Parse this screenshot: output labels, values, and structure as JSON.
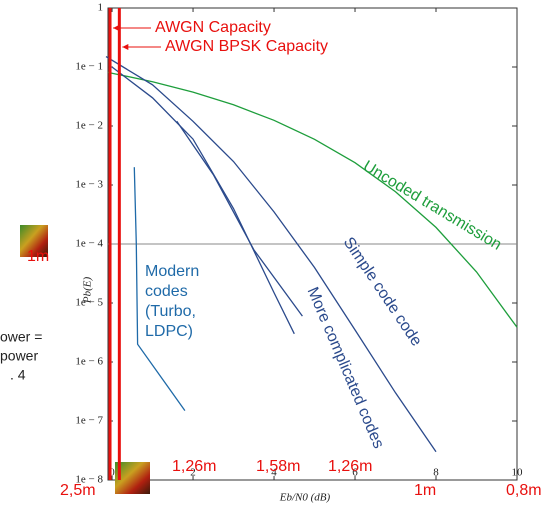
{
  "chart_data": {
    "type": "line",
    "log_y": true,
    "y_label": "Pb(E)",
    "x_label": "Eb/N0 (dB)",
    "xlim": [
      -0.1,
      10
    ],
    "ylim": [
      1e-08,
      1
    ],
    "xticks": [
      0,
      2,
      4,
      6,
      8,
      10
    ],
    "yticks": [
      1,
      {
        "value": 0.1,
        "label": "1e − 1"
      },
      {
        "value": 0.01,
        "label": "1e − 2"
      },
      {
        "value": 0.001,
        "label": "1e − 3"
      },
      {
        "value": 0.0001,
        "label": "1e − 4"
      },
      {
        "value": 1e-05,
        "label": "1e − 5"
      },
      {
        "value": 1e-06,
        "label": "1e − 6"
      },
      {
        "value": 1e-07,
        "label": "1e − 7"
      },
      {
        "value": 1e-08,
        "label": "1e − 8"
      }
    ],
    "reference_line": 0.0001,
    "capacity_lines": [
      {
        "name": "AWGN Capacity",
        "x": -0.05,
        "color": "#e8100e"
      },
      {
        "name": "AWGN BPSK Capacity",
        "x": 0.18,
        "color": "#e8100e"
      }
    ],
    "series": [
      {
        "name": "Uncoded transmission",
        "color": "#1e9e3c",
        "x": [
          -0.1,
          0,
          1,
          2,
          3,
          4,
          5,
          6,
          7,
          8,
          9,
          10
        ],
        "values": [
          0.081,
          0.0786,
          0.0563,
          0.0375,
          0.0229,
          0.0125,
          0.00595,
          0.00239,
          0.00077,
          0.000191,
          3.36e-05,
          3.87e-06
        ]
      },
      {
        "name": "Simple code code",
        "color": "#2b4a8c",
        "x": [
          -0.15,
          1,
          2,
          3,
          4,
          5,
          6,
          7,
          8
        ],
        "values": [
          0.15,
          0.05,
          0.012,
          0.0025,
          0.00035,
          4e-05,
          3.5e-06,
          3e-07,
          3e-08
        ]
      },
      {
        "name": "More complicated codes",
        "color": "#2b4a8c",
        "x": [
          0,
          1,
          2,
          3,
          4,
          4.5
        ],
        "values": [
          0.1,
          0.03,
          0.006,
          0.0004,
          1.5e-05,
          3e-06
        ]
      },
      {
        "color": "#2b4a8c",
        "x": [
          1.6,
          2.5,
          3.5,
          4.7
        ],
        "values": [
          0.012,
          0.0015,
          8e-05,
          6e-06
        ]
      },
      {
        "name": "Modern codes (Turbo, LDPC)",
        "color": "#1f6aa8",
        "x": [
          0.55,
          0.6,
          0.63,
          1.8
        ],
        "values": [
          0.002,
          0.0001,
          2e-06,
          1.5e-07
        ]
      }
    ]
  },
  "slide": {
    "left_text": [
      "ower =",
      "power",
      ". 4"
    ],
    "red_labels": [
      "1m",
      "2,5m",
      "1,26m",
      "1,58m",
      "1,26m",
      "1m",
      "0,8m"
    ]
  }
}
